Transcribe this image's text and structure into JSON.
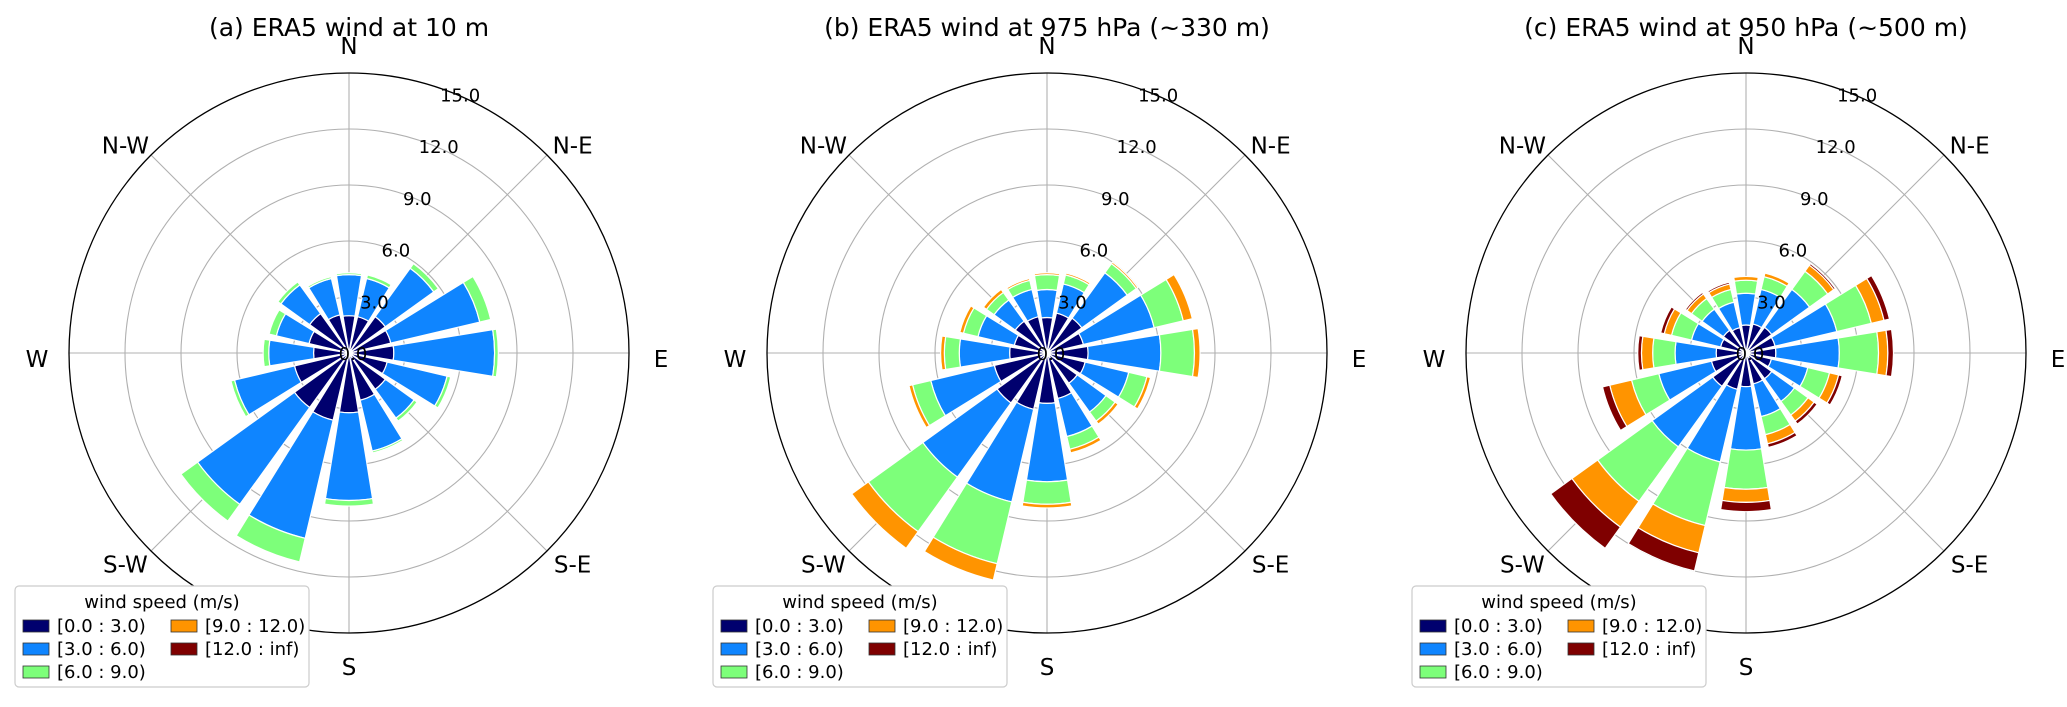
{
  "legend": {
    "title": "wind speed (m/s)",
    "bins": [
      {
        "label": "[0.0 : 3.0)",
        "color": "#00006e"
      },
      {
        "label": "[3.0 : 6.0)",
        "color": "#0f85ff"
      },
      {
        "label": "[6.0 : 9.0)",
        "color": "#7dff7a"
      },
      {
        "label": "[9.0 : 12.0)",
        "color": "#ff9400"
      },
      {
        "label": "[12.0 : inf)",
        "color": "#7f0000"
      }
    ]
  },
  "compass_labels": [
    "N",
    "N-E",
    "E",
    "S-E",
    "S",
    "S-W",
    "W",
    "N-W"
  ],
  "radial_ticks": [
    "0.0",
    "3.0",
    "6.0",
    "9.0",
    "12.0",
    "15.0"
  ],
  "chart_data": [
    {
      "type": "windrose",
      "title": "(a) ERA5 wind at 10 m",
      "rmax": 15,
      "directions_deg": [
        0,
        22.5,
        45,
        67.5,
        90,
        112.5,
        135,
        157.5,
        180,
        202.5,
        225,
        247.5,
        270,
        292.5,
        315,
        337.5
      ],
      "stacked_cumulative": [
        [
          2.0,
          4.2,
          4.3,
          4.3,
          4.3
        ],
        [
          2.0,
          4.1,
          4.3,
          4.3,
          4.3
        ],
        [
          2.4,
          5.6,
          5.9,
          5.9,
          5.9
        ],
        [
          2.3,
          7.2,
          7.8,
          7.8,
          7.8
        ],
        [
          2.4,
          7.8,
          8.0,
          8.0,
          8.0
        ],
        [
          2.1,
          5.4,
          5.6,
          5.6,
          5.6
        ],
        [
          2.4,
          4.3,
          4.5,
          4.5,
          4.5
        ],
        [
          2.6,
          5.4,
          5.5,
          5.5,
          5.5
        ],
        [
          3.2,
          7.9,
          8.2,
          8.2,
          8.2
        ],
        [
          3.7,
          10.2,
          11.5,
          11.5,
          11.5
        ],
        [
          3.6,
          10.0,
          11.1,
          11.1,
          11.1
        ],
        [
          3.0,
          6.3,
          6.5,
          6.5,
          6.5
        ],
        [
          1.9,
          4.3,
          4.6,
          4.6,
          4.6
        ],
        [
          2.2,
          4.0,
          4.4,
          4.4,
          4.4
        ],
        [
          2.6,
          4.5,
          4.7,
          4.7,
          4.7
        ],
        [
          2.1,
          4.1,
          4.2,
          4.2,
          4.2
        ]
      ]
    },
    {
      "type": "windrose",
      "title": "(b) ERA5 wind at 975 hPa (~330 m)",
      "rmax": 15,
      "directions_deg": [
        0,
        22.5,
        45,
        67.5,
        90,
        112.5,
        135,
        157.5,
        180,
        202.5,
        225,
        247.5,
        270,
        292.5,
        315,
        337.5
      ],
      "stacked_cumulative": [
        [
          1.9,
          3.4,
          4.2,
          4.3,
          4.3
        ],
        [
          2.2,
          3.8,
          4.3,
          4.4,
          4.4
        ],
        [
          2.3,
          5.3,
          5.9,
          6.0,
          6.0
        ],
        [
          2.0,
          5.9,
          7.5,
          8.0,
          8.0
        ],
        [
          2.2,
          6.1,
          7.9,
          8.2,
          8.2
        ],
        [
          2.1,
          4.5,
          5.5,
          5.7,
          5.7
        ],
        [
          2.0,
          3.9,
          4.5,
          4.7,
          4.7
        ],
        [
          2.5,
          4.6,
          5.3,
          5.5,
          5.5
        ],
        [
          2.7,
          6.9,
          8.1,
          8.3,
          8.3
        ],
        [
          3.1,
          8.2,
          11.6,
          12.5,
          12.5
        ],
        [
          3.3,
          8.2,
          11.8,
          12.9,
          12.9
        ],
        [
          2.9,
          6.4,
          7.4,
          7.6,
          7.6
        ],
        [
          2.0,
          4.7,
          5.5,
          5.7,
          5.7
        ],
        [
          1.8,
          3.8,
          4.6,
          4.8,
          4.8
        ],
        [
          2.1,
          3.5,
          4.0,
          4.2,
          4.2
        ],
        [
          2.0,
          3.5,
          4.0,
          4.1,
          4.1
        ]
      ]
    },
    {
      "type": "windrose",
      "title": "(c) ERA5 wind at 950 hPa (~500 m)",
      "rmax": 15,
      "directions_deg": [
        0,
        22.5,
        45,
        67.5,
        90,
        112.5,
        135,
        157.5,
        180,
        202.5,
        225,
        247.5,
        270,
        292.5,
        315,
        337.5
      ],
      "stacked_cumulative": [
        [
          1.5,
          3.2,
          3.9,
          4.1,
          4.1
        ],
        [
          1.6,
          3.5,
          4.2,
          4.4,
          4.4
        ],
        [
          1.7,
          4.2,
          5.4,
          5.8,
          5.9
        ],
        [
          1.6,
          5.0,
          6.9,
          7.6,
          7.9
        ],
        [
          1.6,
          5.0,
          7.1,
          7.6,
          7.9
        ],
        [
          1.4,
          3.4,
          4.6,
          5.1,
          5.3
        ],
        [
          1.7,
          3.2,
          4.1,
          4.5,
          4.7
        ],
        [
          1.7,
          3.5,
          4.5,
          5.0,
          5.2
        ],
        [
          1.8,
          5.2,
          7.3,
          8.0,
          8.5
        ],
        [
          2.0,
          6.0,
          9.5,
          11.0,
          12.0
        ],
        [
          2.2,
          6.2,
          9.8,
          11.5,
          12.9
        ],
        [
          1.9,
          4.8,
          6.3,
          7.5,
          7.9
        ],
        [
          1.6,
          3.8,
          5.0,
          5.6,
          5.8
        ],
        [
          1.4,
          3.0,
          4.1,
          4.5,
          4.7
        ],
        [
          1.5,
          2.9,
          3.6,
          3.9,
          4.0
        ],
        [
          1.4,
          2.8,
          3.5,
          3.8,
          3.9
        ]
      ]
    }
  ]
}
